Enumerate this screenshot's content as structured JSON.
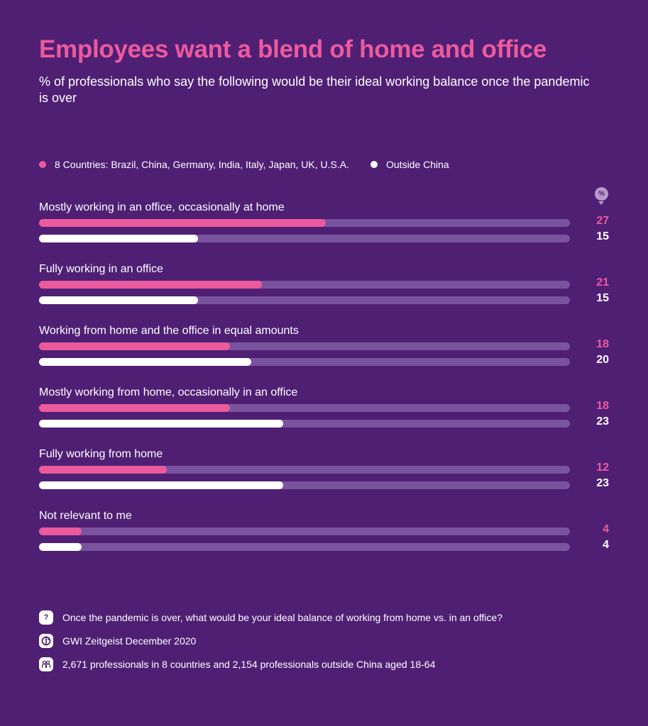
{
  "chart_data": {
    "type": "bar",
    "orientation": "horizontal",
    "title": "Employees want a blend of home and office",
    "subtitle": "% of professionals who say the following would be their ideal working balance once the pandemic is over",
    "unit_badge": "%",
    "xlim": [
      0,
      50
    ],
    "grid": false,
    "legend_position": "top-left",
    "categories": [
      "Mostly working in an office, occasionally at home",
      "Fully working in an office",
      "Working from home and the office in equal amounts",
      "Mostly working from home, occasionally in an office",
      "Fully working from home",
      "Not relevant to me"
    ],
    "series": [
      {
        "name": "8 Countries: Brazil, China, Germany, India, Italy, Japan, UK, U.S.A.",
        "color": "#ec5a9e",
        "values": [
          27,
          21,
          18,
          18,
          12,
          4
        ]
      },
      {
        "name": "Outside China",
        "color": "#ffffff",
        "values": [
          15,
          15,
          20,
          23,
          23,
          4
        ]
      }
    ],
    "track_color": "#7a539f"
  },
  "footer": {
    "question": "Once the pandemic is over, what would be your ideal balance of working from home vs. in an office?",
    "source": "GWI Zeitgeist December 2020",
    "sample": "2,671 professionals in 8 countries and 2,154 professionals outside China aged 18-64",
    "icons": [
      "question-icon",
      "gwi-logo-icon",
      "people-icon"
    ]
  }
}
